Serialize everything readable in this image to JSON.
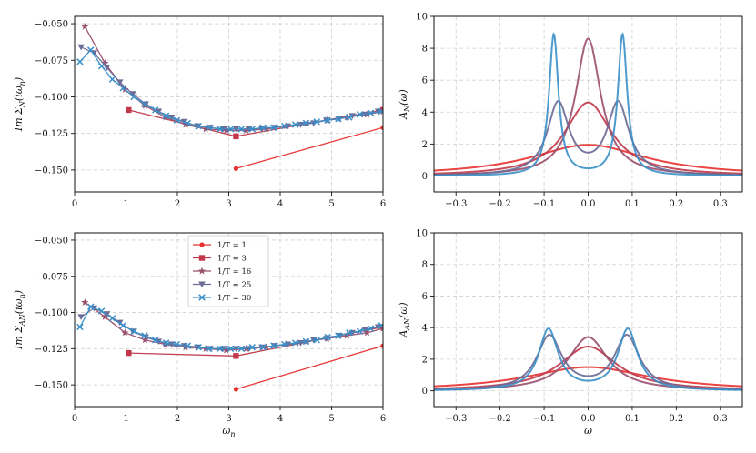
{
  "colors": {
    "T1": "#e8302f",
    "T3": "#c0384a",
    "T16": "#9a4f6d",
    "T25": "#6b6b96",
    "T30": "#3a8fc8",
    "grid": "#d0d0d0"
  },
  "legend": {
    "entries": [
      {
        "label": "1/T = 1",
        "series": "T1",
        "marker": "circle"
      },
      {
        "label": "1/T = 3",
        "series": "T3",
        "marker": "square"
      },
      {
        "label": "1/T = 16",
        "series": "T16",
        "marker": "star"
      },
      {
        "label": "1/T = 25",
        "series": "T25",
        "marker": "triangle-down"
      },
      {
        "label": "1/T = 30",
        "series": "T30",
        "marker": "x"
      }
    ]
  },
  "chart_data": [
    {
      "id": "top_left",
      "type": "line",
      "xlabel": "",
      "ylabel": "Im Σ_N(iω_n)",
      "xlim": [
        0,
        6
      ],
      "ylim": [
        -0.165,
        -0.045
      ],
      "xticks": [
        0,
        1,
        2,
        3,
        4,
        5,
        6
      ],
      "xtick_labels": [
        "0",
        "1",
        "2",
        "3",
        "4",
        "5",
        "6"
      ],
      "yticks": [
        -0.15,
        -0.125,
        -0.1,
        -0.075,
        -0.05
      ],
      "ytick_labels": [
        "−0.150",
        "−0.125",
        "−0.100",
        "−0.075",
        "−0.050"
      ],
      "grid": true,
      "series": [
        {
          "key": "T1",
          "marker": "circle",
          "x": [
            3.14,
            6.0
          ],
          "y": [
            -0.149,
            -0.121
          ]
        },
        {
          "key": "T3",
          "marker": "square",
          "x": [
            1.05,
            3.14,
            6.0
          ],
          "y": [
            -0.109,
            -0.127,
            -0.109
          ]
        },
        {
          "key": "T16",
          "marker": "star",
          "x": [
            0.2,
            0.59,
            0.98,
            1.37,
            1.77,
            2.16,
            2.55,
            2.95,
            3.34,
            3.73,
            4.12,
            4.52,
            4.91,
            5.3,
            5.69,
            6.0
          ],
          "y": [
            -0.052,
            -0.077,
            -0.095,
            -0.106,
            -0.114,
            -0.119,
            -0.122,
            -0.123,
            -0.123,
            -0.122,
            -0.12,
            -0.118,
            -0.116,
            -0.114,
            -0.112,
            -0.11
          ]
        },
        {
          "key": "T25",
          "marker": "triangle-down",
          "x": [
            0.126,
            0.377,
            0.628,
            0.88,
            1.131,
            1.382,
            1.634,
            1.885,
            2.136,
            2.388,
            2.639,
            2.89,
            3.142,
            3.393,
            3.644,
            3.896,
            4.147,
            4.398,
            4.65,
            4.901,
            5.152,
            5.403,
            5.655,
            5.906
          ],
          "y": [
            -0.066,
            -0.07,
            -0.08,
            -0.09,
            -0.098,
            -0.105,
            -0.11,
            -0.114,
            -0.117,
            -0.12,
            -0.121,
            -0.122,
            -0.122,
            -0.122,
            -0.122,
            -0.121,
            -0.12,
            -0.119,
            -0.118,
            -0.116,
            -0.115,
            -0.113,
            -0.112,
            -0.11
          ]
        },
        {
          "key": "T30",
          "marker": "x",
          "x": [
            0.105,
            0.314,
            0.524,
            0.733,
            0.942,
            1.152,
            1.361,
            1.571,
            1.78,
            1.99,
            2.199,
            2.409,
            2.618,
            2.827,
            3.037,
            3.246,
            3.456,
            3.665,
            3.875,
            4.084,
            4.294,
            4.503,
            4.712,
            4.922,
            5.131,
            5.341,
            5.55,
            5.76,
            5.969
          ],
          "y": [
            -0.076,
            -0.068,
            -0.079,
            -0.088,
            -0.094,
            -0.1,
            -0.105,
            -0.109,
            -0.113,
            -0.116,
            -0.118,
            -0.12,
            -0.121,
            -0.122,
            -0.122,
            -0.122,
            -0.122,
            -0.121,
            -0.121,
            -0.12,
            -0.119,
            -0.118,
            -0.117,
            -0.116,
            -0.115,
            -0.114,
            -0.112,
            -0.111,
            -0.11
          ]
        }
      ]
    },
    {
      "id": "top_right",
      "type": "line",
      "xlabel": "",
      "ylabel": "A_N(ω)",
      "xlim": [
        -0.35,
        0.35
      ],
      "ylim": [
        -1,
        10
      ],
      "xticks": [
        -0.3,
        -0.2,
        -0.1,
        0.0,
        0.1,
        0.2,
        0.3
      ],
      "xtick_labels": [
        "−0.3",
        "−0.2",
        "−0.1",
        "0.0",
        "0.1",
        "0.2",
        "0.3"
      ],
      "yticks": [
        0,
        2,
        4,
        6,
        8,
        10
      ],
      "ytick_labels": [
        "0",
        "2",
        "4",
        "6",
        "8",
        "10"
      ],
      "grid": true,
      "series": [
        {
          "key": "T1",
          "model": "lorentz",
          "peaks": [
            0
          ],
          "height": 1.95,
          "width": 0.16
        },
        {
          "key": "T3",
          "model": "lorentz",
          "peaks": [
            0
          ],
          "height": 4.6,
          "width": 0.065
        },
        {
          "key": "T16",
          "model": "lorentz",
          "peaks": [
            0
          ],
          "height": 8.6,
          "width": 0.035
        },
        {
          "key": "T25",
          "model": "lorentz",
          "peaks": [
            -0.068,
            0.068
          ],
          "height": 4.7,
          "width": 0.03
        },
        {
          "key": "T30",
          "model": "lorentz",
          "peaks": [
            -0.078,
            0.078
          ],
          "height": 8.9,
          "width": 0.013
        }
      ]
    },
    {
      "id": "bottom_left",
      "type": "line",
      "xlabel": "ω_n",
      "ylabel": "Im Σ_AN(iω_n)",
      "xlim": [
        0,
        6
      ],
      "ylim": [
        -0.165,
        -0.045
      ],
      "xticks": [
        0,
        1,
        2,
        3,
        4,
        5,
        6
      ],
      "xtick_labels": [
        "0",
        "1",
        "2",
        "3",
        "4",
        "5",
        "6"
      ],
      "yticks": [
        -0.15,
        -0.125,
        -0.1,
        -0.075,
        -0.05
      ],
      "ytick_labels": [
        "−0.150",
        "−0.125",
        "−0.100",
        "−0.075",
        "−0.050"
      ],
      "grid": true,
      "series": [
        {
          "key": "T1",
          "marker": "circle",
          "x": [
            3.14,
            6.0
          ],
          "y": [
            -0.153,
            -0.123
          ]
        },
        {
          "key": "T3",
          "marker": "square",
          "x": [
            1.05,
            3.14,
            6.0
          ],
          "y": [
            -0.128,
            -0.13,
            -0.11
          ]
        },
        {
          "key": "T16",
          "marker": "star",
          "x": [
            0.2,
            0.59,
            0.98,
            1.37,
            1.77,
            2.16,
            2.55,
            2.95,
            3.34,
            3.73,
            4.12,
            4.52,
            4.91,
            5.3,
            5.69,
            6.0
          ],
          "y": [
            -0.093,
            -0.103,
            -0.114,
            -0.119,
            -0.122,
            -0.124,
            -0.125,
            -0.126,
            -0.125,
            -0.124,
            -0.122,
            -0.12,
            -0.118,
            -0.116,
            -0.114,
            -0.111
          ]
        },
        {
          "key": "T25",
          "marker": "triangle-down",
          "x": [
            0.126,
            0.377,
            0.628,
            0.88,
            1.131,
            1.382,
            1.634,
            1.885,
            2.136,
            2.388,
            2.639,
            2.89,
            3.142,
            3.393,
            3.644,
            3.896,
            4.147,
            4.398,
            4.65,
            4.901,
            5.152,
            5.403,
            5.655,
            5.906
          ],
          "y": [
            -0.103,
            -0.097,
            -0.101,
            -0.107,
            -0.113,
            -0.117,
            -0.12,
            -0.122,
            -0.123,
            -0.124,
            -0.125,
            -0.125,
            -0.125,
            -0.125,
            -0.124,
            -0.123,
            -0.122,
            -0.121,
            -0.119,
            -0.118,
            -0.116,
            -0.114,
            -0.112,
            -0.11
          ]
        },
        {
          "key": "T30",
          "marker": "x",
          "x": [
            0.105,
            0.314,
            0.524,
            0.733,
            0.942,
            1.152,
            1.361,
            1.571,
            1.78,
            1.99,
            2.199,
            2.409,
            2.618,
            2.827,
            3.037,
            3.246,
            3.456,
            3.665,
            3.875,
            4.084,
            4.294,
            4.503,
            4.712,
            4.922,
            5.131,
            5.341,
            5.55,
            5.76,
            5.969
          ],
          "y": [
            -0.11,
            -0.096,
            -0.099,
            -0.104,
            -0.109,
            -0.113,
            -0.116,
            -0.119,
            -0.121,
            -0.122,
            -0.123,
            -0.124,
            -0.125,
            -0.125,
            -0.125,
            -0.125,
            -0.124,
            -0.124,
            -0.123,
            -0.122,
            -0.121,
            -0.12,
            -0.119,
            -0.117,
            -0.116,
            -0.114,
            -0.113,
            -0.111,
            -0.109
          ]
        }
      ]
    },
    {
      "id": "bottom_right",
      "type": "line",
      "xlabel": "ω",
      "ylabel": "A_AN(ω)",
      "xlim": [
        -0.35,
        0.35
      ],
      "ylim": [
        -1,
        10
      ],
      "xticks": [
        -0.3,
        -0.2,
        -0.1,
        0.0,
        0.1,
        0.2,
        0.3
      ],
      "xtick_labels": [
        "−0.3",
        "−0.2",
        "−0.1",
        "0.0",
        "0.1",
        "0.2",
        "0.3"
      ],
      "yticks": [
        0,
        2,
        4,
        6,
        8,
        10
      ],
      "ytick_labels": [
        "0",
        "2",
        "4",
        "6",
        "8",
        "10"
      ],
      "grid": true,
      "series": [
        {
          "key": "T1",
          "model": "lorentz",
          "peaks": [
            0
          ],
          "height": 1.5,
          "width": 0.17
        },
        {
          "key": "T3",
          "model": "lorentz",
          "peaks": [
            0
          ],
          "height": 2.8,
          "width": 0.08
        },
        {
          "key": "T16",
          "model": "lorentz",
          "peaks": [
            0
          ],
          "height": 3.4,
          "width": 0.055
        },
        {
          "key": "T25",
          "model": "lorentz",
          "peaks": [
            -0.088,
            0.088
          ],
          "height": 3.55,
          "width": 0.035
        },
        {
          "key": "T30",
          "model": "lorentz",
          "peaks": [
            -0.09,
            0.09
          ],
          "height": 3.95,
          "width": 0.027
        }
      ]
    }
  ]
}
